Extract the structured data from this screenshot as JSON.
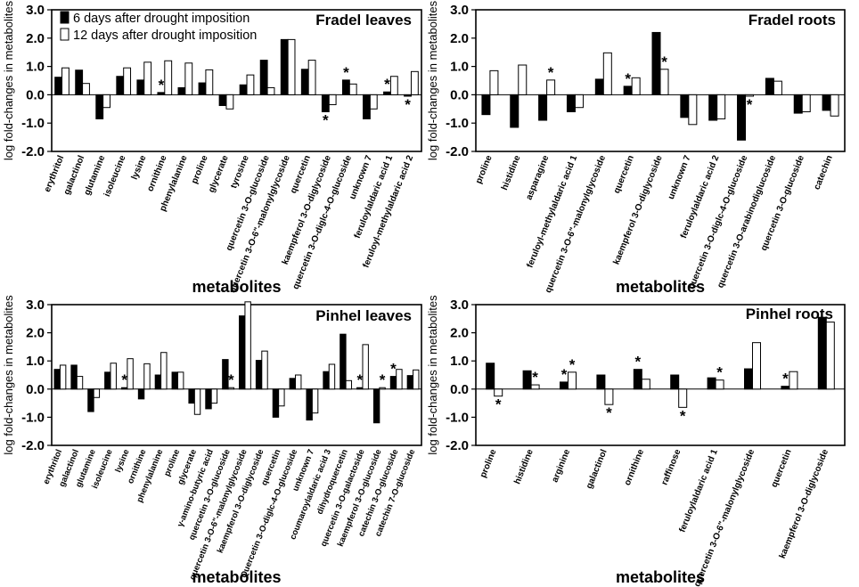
{
  "figure": {
    "legend": {
      "series": [
        "6 days after drought imposition",
        "12 days after drought imposition"
      ],
      "colors": [
        "#000000",
        "#ffffff"
      ]
    }
  },
  "chart_data": [
    {
      "type": "bar",
      "title": "Fradel leaves",
      "xlabel": "metabolites",
      "ylabel": "log fold-changes in metabolites",
      "ylim": [
        -2.0,
        3.0
      ],
      "yticks": [
        "-2.0",
        "-1.0",
        "0.0",
        "1.0",
        "2.0",
        "3.0"
      ],
      "categories": [
        "erythritol",
        "galactinol",
        "glutamine",
        "isoleucine",
        "lysine",
        "ornithine",
        "phenylalanine",
        "proline",
        "glycerate",
        "tyrosine",
        "quercetin 3-O-glucoside",
        "quercetin 3-O-6\"-malonylglycoside",
        "quercetin",
        "kaempferol 3-O-diglycoside",
        "quercetin 3-O-diglc-4-O-glucoside",
        "unknown 7",
        "feruloylaldaric acid 1",
        "feruloyl-methylaldaric acid 2"
      ],
      "series": [
        {
          "name": "6 days after drought imposition",
          "values": [
            0.62,
            0.87,
            -0.85,
            0.65,
            0.52,
            0.08,
            0.25,
            0.42,
            -0.38,
            0.35,
            1.22,
            1.95,
            0.9,
            -0.6,
            0.52,
            -0.85,
            0.1,
            -0.05
          ]
        },
        {
          "name": "12 days after drought imposition",
          "values": [
            0.95,
            0.4,
            -0.45,
            0.95,
            1.15,
            1.2,
            1.12,
            0.88,
            -0.5,
            0.7,
            0.25,
            1.95,
            1.22,
            -0.35,
            0.38,
            -0.5,
            0.65,
            0.82
          ]
        }
      ],
      "annotations": [
        {
          "category_index": 5,
          "series": 0,
          "text": "*"
        },
        {
          "category_index": 13,
          "series": 0,
          "text": "*"
        },
        {
          "category_index": 14,
          "series": 0,
          "text": "*"
        },
        {
          "category_index": 16,
          "series": 0,
          "text": "*"
        },
        {
          "category_index": 17,
          "series": 0,
          "text": "*"
        }
      ]
    },
    {
      "type": "bar",
      "title": "Fradel roots",
      "xlabel": "metabolites",
      "ylabel": "log fold-changes in metabolites",
      "ylim": [
        -2.0,
        3.0
      ],
      "yticks": [
        "-2.0",
        "-1.0",
        "0.0",
        "1.0",
        "2.0",
        "3.0"
      ],
      "categories": [
        "proline",
        "histidine",
        "asparagine",
        "feruloyl-methylaldaric acid 1",
        "quercetin 3-O-6\"-malonylglycoside",
        "quercetin",
        "kaempferol 3-O-diglycoside",
        "unknown 7",
        "feruloylaldaric acid 2",
        "quercetin 3-O-diglc-4-O-glucoside",
        "quercetin 3-O-arabinodiglucoside",
        "quercetin 3-O-glucoside",
        "catechin"
      ],
      "series": [
        {
          "name": "6 days after drought imposition",
          "values": [
            -0.7,
            -1.15,
            -0.9,
            -0.6,
            0.55,
            0.3,
            2.2,
            -0.8,
            -0.9,
            -1.6,
            0.58,
            -0.65,
            -0.55
          ]
        },
        {
          "name": "12 days after drought imposition",
          "values": [
            0.85,
            1.05,
            0.52,
            -0.45,
            1.48,
            0.6,
            0.9,
            -1.05,
            -0.85,
            -0.05,
            0.48,
            -0.6,
            -0.75
          ]
        }
      ],
      "annotations": [
        {
          "category_index": 2,
          "series": 1,
          "text": "*"
        },
        {
          "category_index": 5,
          "series": 0,
          "text": "*"
        },
        {
          "category_index": 6,
          "series": 1,
          "text": "*"
        },
        {
          "category_index": 9,
          "series": 1,
          "text": "*"
        }
      ]
    },
    {
      "type": "bar",
      "title": "Pinhel leaves",
      "xlabel": "metabolites",
      "ylabel": "log fold-changes in metabolites",
      "ylim": [
        -2.0,
        3.0
      ],
      "yticks": [
        "-2.0",
        "-1.0",
        "0.0",
        "1.0",
        "2.0",
        "3.0"
      ],
      "categories": [
        "erythritol",
        "galactinol",
        "glutamine",
        "isoleucine",
        "lysine",
        "ornithine",
        "phenylalanine",
        "proline",
        "glycerate",
        "γ-amino-butyric acid",
        "quercetin 3-O-glucoside",
        "quercetin 3-O-6\"-malonylglycoside",
        "kaempferol 3-O-diglycoside",
        "quercetin",
        "Quercetin 3-O-diglc-4-O-glucoside",
        "unknown 7",
        "coumaroylaldaric acid 3",
        "dihydroquercetin",
        "quercetin 3-O-galactoside",
        "kaempferol 3-O-glucoside",
        "catechin 3-O-glucoside",
        "catechin 7-O-glucoside"
      ],
      "series": [
        {
          "name": "6 days after drought imposition",
          "values": [
            0.7,
            0.85,
            -0.8,
            0.6,
            0.05,
            -0.35,
            0.5,
            0.6,
            -0.5,
            -0.7,
            1.05,
            2.6,
            1.02,
            -1.0,
            0.38,
            -1.1,
            0.62,
            1.95,
            0.05,
            -1.2,
            0.45,
            0.48
          ]
        },
        {
          "name": "12 days after drought imposition",
          "values": [
            0.85,
            0.45,
            -0.3,
            0.92,
            1.08,
            0.9,
            1.3,
            0.6,
            -0.9,
            -0.5,
            0.05,
            3.1,
            1.35,
            -0.6,
            0.5,
            -0.85,
            0.88,
            0.3,
            1.58,
            0.05,
            0.7,
            0.68
          ]
        }
      ],
      "annotations": [
        {
          "category_index": 4,
          "series": 0,
          "text": "*"
        },
        {
          "category_index": 10,
          "series": 1,
          "text": "*"
        },
        {
          "category_index": 18,
          "series": 0,
          "text": "*"
        },
        {
          "category_index": 19,
          "series": 1,
          "text": "*"
        },
        {
          "category_index": 20,
          "series": 0,
          "text": "*"
        }
      ]
    },
    {
      "type": "bar",
      "title": "Pinhel roots",
      "xlabel": "metabolites",
      "ylabel": "log fold-changes in metabolites",
      "ylim": [
        -2.0,
        3.0
      ],
      "yticks": [
        "-2.0",
        "-1.0",
        "0.0",
        "1.0",
        "2.0",
        "3.0"
      ],
      "categories": [
        "proline",
        "histidine",
        "arginine",
        "galactinol",
        "ornithine",
        "raffinose",
        "feruloylaldaric acid 1",
        "quercetin 3-O-6\"-malonylglycoside",
        "quercetin",
        "kaempferol 3-O-diglycoside"
      ],
      "series": [
        {
          "name": "6 days after drought imposition",
          "values": [
            0.92,
            0.65,
            0.25,
            0.5,
            0.7,
            0.5,
            0.4,
            0.72,
            0.1,
            2.55
          ]
        },
        {
          "name": "12 days after drought imposition",
          "values": [
            -0.25,
            0.15,
            0.6,
            -0.55,
            0.35,
            -0.65,
            0.32,
            1.65,
            0.62,
            2.38
          ]
        }
      ],
      "annotations": [
        {
          "category_index": 0,
          "series": 1,
          "text": "*"
        },
        {
          "category_index": 1,
          "series": 1,
          "text": "*"
        },
        {
          "category_index": 2,
          "series": 0,
          "text": "*"
        },
        {
          "category_index": 2,
          "series": 1,
          "text": "*"
        },
        {
          "category_index": 3,
          "series": 1,
          "text": "*"
        },
        {
          "category_index": 4,
          "series": 0,
          "text": "*"
        },
        {
          "category_index": 5,
          "series": 1,
          "text": "*"
        },
        {
          "category_index": 6,
          "series": 1,
          "text": "*"
        },
        {
          "category_index": 8,
          "series": 0,
          "text": "*"
        }
      ]
    }
  ]
}
